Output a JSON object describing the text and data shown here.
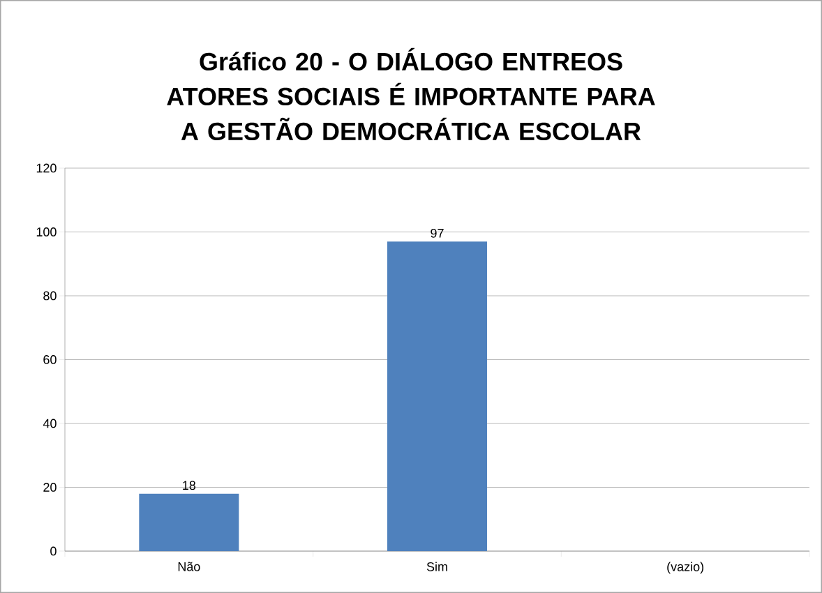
{
  "chart_data": {
    "type": "bar",
    "title": "Gráfico 20 - O DIÁLOGO ENTREOS ATORES SOCIAIS É IMPORTANTE PARA A GESTÃO DEMOCRÁTICA ESCOLAR",
    "categories": [
      "Não",
      "Sim",
      "(vazio)"
    ],
    "values": [
      18,
      97,
      null
    ],
    "color": "#4f81bd",
    "ylim": [
      0,
      120
    ],
    "yticks": [
      0,
      20,
      40,
      60,
      80,
      100,
      120
    ],
    "grid": "y",
    "data_labels": true
  }
}
